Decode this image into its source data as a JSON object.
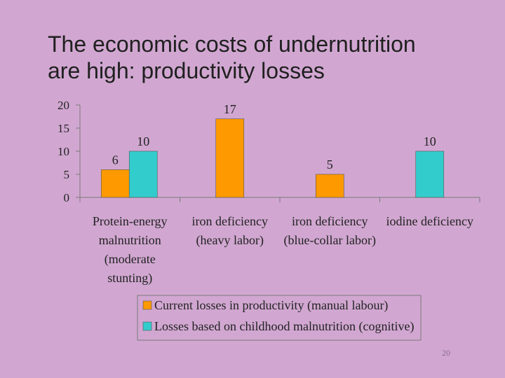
{
  "title_lines": [
    "The economic costs of undernutrition",
    "are high: productivity losses"
  ],
  "slide_number": "20",
  "chart_data": {
    "type": "bar",
    "title": "The economic costs of undernutrition are high: productivity losses",
    "categories": [
      [
        "Protein-energy",
        "malnutrition",
        "(moderate",
        "stunting)"
      ],
      [
        "iron deficiency",
        "(heavy labor)"
      ],
      [
        "iron deficiency",
        "(blue-collar labor)"
      ],
      [
        "iodine deficiency"
      ]
    ],
    "series": [
      {
        "name": "Current losses in productivity (manual labour)",
        "color": "#ff9900",
        "values": [
          6,
          17,
          5,
          null
        ]
      },
      {
        "name": "Losses based on childhood malnutrition (cognitive)",
        "color": "#33cccc",
        "values": [
          10,
          null,
          null,
          10
        ]
      }
    ],
    "yticks": [
      "0",
      "5",
      "10",
      "15",
      "20"
    ],
    "ylim": [
      0,
      20
    ],
    "legend_position": "bottom"
  }
}
